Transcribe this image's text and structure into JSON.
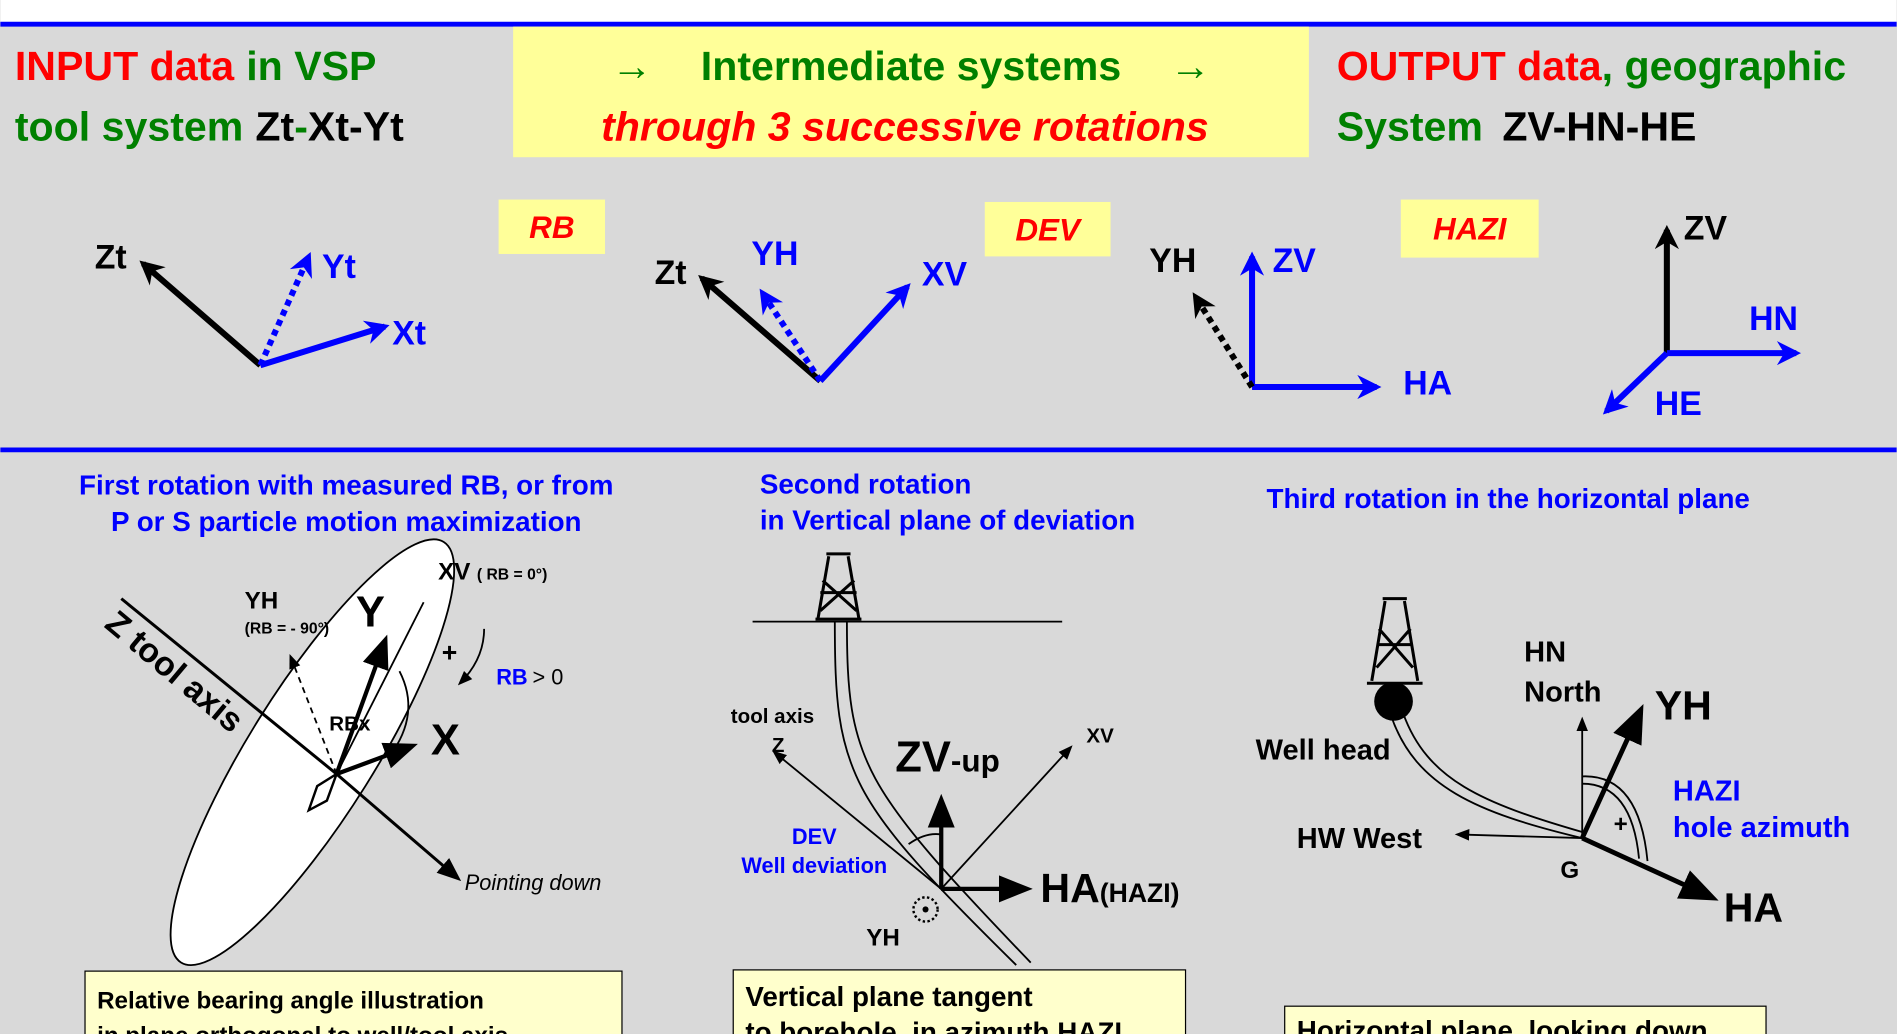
{
  "header": {
    "input": {
      "line1": [
        "INPUT data",
        "in VSP"
      ],
      "line2": [
        "tool system",
        "Zt",
        "-",
        "Xt",
        "-Yt"
      ]
    },
    "middle": {
      "line1": [
        "→",
        "Intermediate  systems",
        "→"
      ],
      "line2": "through 3 successive rotations"
    },
    "output": {
      "line1": [
        "OUTPUT data",
        ", geographic"
      ],
      "line2": [
        "System",
        "ZV-HN-HE"
      ]
    }
  },
  "rotations": [
    "RB",
    "DEV",
    "HAZI"
  ],
  "systems": [
    {
      "labels": [
        "Zt",
        "Yt",
        "Xt"
      ]
    },
    {
      "labels": [
        "Zt",
        "YH",
        "XV"
      ]
    },
    {
      "labels": [
        "YH",
        "ZV",
        "HA"
      ]
    },
    {
      "labels": [
        "ZV",
        "HN",
        "HE"
      ]
    }
  ],
  "panels": [
    {
      "title": [
        "First rotation with measured RB, or from",
        "P or S particle motion maximization"
      ],
      "labels": {
        "z_axis": "Z tool axis",
        "yh": "YH",
        "yh_rb": "(RB = - 90°)",
        "y": "Y",
        "xv": "XV",
        "xv_rb": "( RB = 0°)",
        "plus": "+",
        "rb": "RB",
        "rb_sign": "> 0",
        "rbx": "RBx",
        "x": "X",
        "pointing": "Pointing down"
      },
      "caption": [
        "Relative bearing angle illustration",
        "in plane orthogonal to well/tool axis"
      ]
    },
    {
      "title": [
        "Second rotation",
        "in Vertical plane of deviation"
      ],
      "labels": {
        "tool_axis": "tool axis",
        "z": "Z",
        "zv": "ZV",
        "zv_up": "-up",
        "xv": "XV",
        "dev": "DEV",
        "well_dev": "Well deviation",
        "ha": "HA",
        "hazi": "(HAZI)",
        "yh": "YH"
      },
      "caption": [
        "Vertical plane tangent",
        "to borehole, in azimuth HAZI"
      ]
    },
    {
      "title": [
        "Third rotation in the horizontal plane"
      ],
      "labels": {
        "hn": "HN",
        "north": "North",
        "yh": "YH",
        "well_head": "Well head",
        "hazi": "HAZI",
        "hole_azimuth": "hole azimuth",
        "plus": "+",
        "hw": "HW West",
        "g": "G",
        "ha": "HA"
      },
      "caption": [
        "Horizontal plane, looking down"
      ]
    }
  ]
}
